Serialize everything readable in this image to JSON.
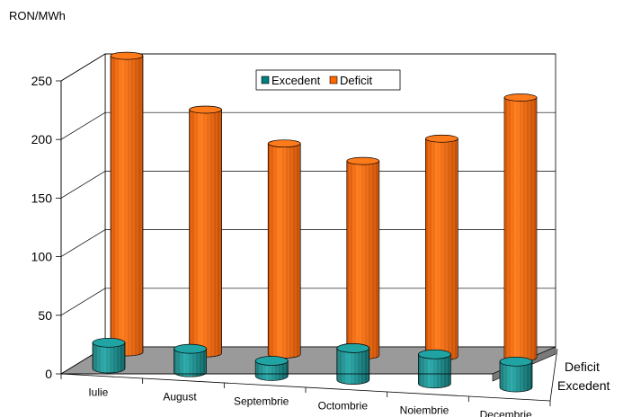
{
  "chart_data": {
    "type": "bar",
    "ylabel": "RON/MWh",
    "ylim": [
      0,
      250
    ],
    "yticks": [
      0,
      50,
      100,
      150,
      200,
      250
    ],
    "grid": true,
    "categories": [
      "Iulie",
      "August",
      "Septembrie",
      "Octombrie",
      "Noiembrie",
      "Decembrie"
    ],
    "series": [
      {
        "name": "Excedent",
        "values": [
          22,
          20,
          13,
          27,
          25,
          22
        ],
        "color": "#008080"
      },
      {
        "name": "Deficit",
        "values": [
          253,
          208,
          180,
          166,
          186,
          222
        ],
        "color": "#ff6600"
      }
    ],
    "depth_labels": [
      "Deficit",
      "Excedent"
    ],
    "legend_position": "top-center",
    "style": "3d-cylinder"
  }
}
